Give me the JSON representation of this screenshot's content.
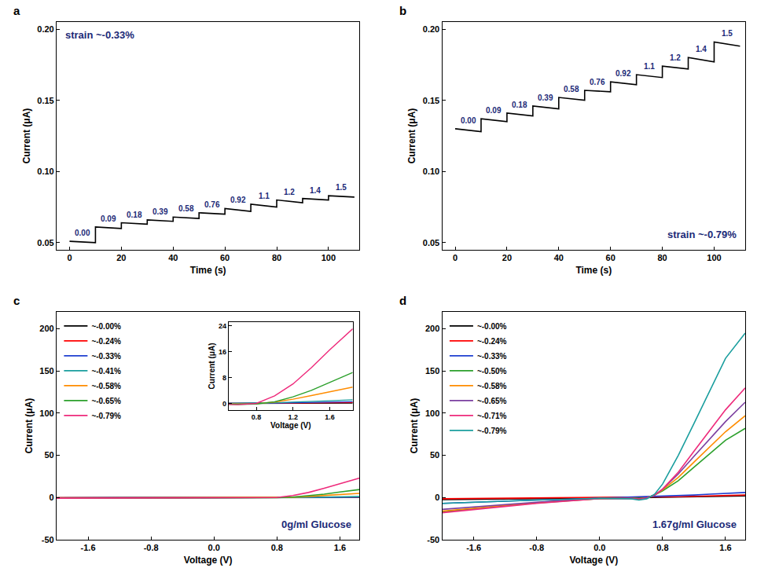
{
  "chart_data": [
    {
      "panel": "a",
      "type": "line",
      "color": "#000000",
      "x": [
        0,
        10,
        10,
        20,
        20,
        30,
        30,
        40,
        40,
        50,
        50,
        60,
        60,
        70,
        70,
        80,
        80,
        90,
        90,
        100,
        100,
        110
      ],
      "values": [
        0.051,
        0.05,
        0.061,
        0.06,
        0.064,
        0.063,
        0.066,
        0.065,
        0.068,
        0.067,
        0.071,
        0.07,
        0.074,
        0.072,
        0.077,
        0.075,
        0.08,
        0.078,
        0.081,
        0.08,
        0.083,
        0.082
      ],
      "segment_labels": [
        "0.00",
        "0.09",
        "0.18",
        "0.39",
        "0.58",
        "0.76",
        "0.92",
        "1.1",
        "1.2",
        "1.4",
        "1.5"
      ],
      "annotations": [
        "strain ~-0.33%"
      ],
      "xlabel": "Time (s)",
      "ylabel": "Current (μA)",
      "xlim": [
        -5,
        112
      ],
      "ylim": [
        0.045,
        0.205
      ],
      "xticks": [
        0,
        20,
        40,
        60,
        80,
        100
      ],
      "yticks": [
        0.05,
        {
          "value": 0.1,
          "label": "0.10"
        },
        0.15,
        {
          "value": 0.2,
          "label": "0.20"
        }
      ],
      "grid": false
    },
    {
      "panel": "b",
      "type": "line",
      "color": "#000000",
      "x": [
        0,
        10,
        10,
        20,
        20,
        30,
        30,
        40,
        40,
        50,
        50,
        60,
        60,
        70,
        70,
        80,
        80,
        90,
        90,
        100,
        100,
        110
      ],
      "values": [
        0.13,
        0.128,
        0.137,
        0.135,
        0.141,
        0.139,
        0.146,
        0.144,
        0.152,
        0.15,
        0.157,
        0.156,
        0.163,
        0.161,
        0.168,
        0.166,
        0.174,
        0.172,
        0.18,
        0.177,
        0.191,
        0.188
      ],
      "segment_labels": [
        "0.00",
        "0.09",
        "0.18",
        "0.39",
        "0.58",
        "0.76",
        "0.92",
        "1.1",
        "1.2",
        "1.4",
        "1.5"
      ],
      "annotations": [
        "strain ~-0.79%"
      ],
      "xlabel": "Time (s)",
      "ylabel": "Current (μA)",
      "xlim": [
        -5,
        112
      ],
      "ylim": [
        0.045,
        0.205
      ],
      "xticks": [
        0,
        20,
        40,
        60,
        80,
        100
      ],
      "yticks": [
        0.05,
        {
          "value": 0.1,
          "label": "0.10"
        },
        0.15,
        {
          "value": 0.2,
          "label": "0.20"
        }
      ],
      "grid": false
    },
    {
      "panel": "c",
      "type": "line",
      "legend": "upper left",
      "x": [
        -2.0,
        -1.6,
        -1.2,
        -0.8,
        -0.4,
        0,
        0.4,
        0.6,
        0.8,
        1.0,
        1.2,
        1.4,
        1.6,
        1.85
      ],
      "series": [
        {
          "name": "~-0.00%",
          "color": "#000000",
          "values": [
            -0.3,
            -0.3,
            -0.2,
            -0.2,
            -0.1,
            0,
            0,
            0,
            0,
            0,
            0,
            0.05,
            0.1,
            0.1
          ]
        },
        {
          "name": "~-0.24%",
          "color": "#ff0000",
          "values": [
            -0.3,
            -0.3,
            -0.2,
            -0.2,
            -0.1,
            0,
            0,
            0,
            0,
            0.05,
            0.1,
            0.15,
            0.2,
            0.3
          ]
        },
        {
          "name": "~-0.33%",
          "color": "#1f3fd0",
          "values": [
            -0.4,
            -0.4,
            -0.3,
            -0.3,
            -0.2,
            0,
            0,
            0,
            0.05,
            0.1,
            0.2,
            0.3,
            0.4,
            0.5
          ]
        },
        {
          "name": "~-0.41%",
          "color": "#1a9e9e",
          "values": [
            -0.5,
            -0.5,
            -0.4,
            -0.3,
            -0.2,
            0,
            0,
            0,
            0.1,
            0.2,
            0.35,
            0.55,
            0.8,
            1.1
          ]
        },
        {
          "name": "~-0.58%",
          "color": "#ff8c00",
          "values": [
            -0.6,
            -0.5,
            -0.5,
            -0.4,
            -0.3,
            -0.1,
            -0.1,
            -0.2,
            -0.1,
            0.4,
            1.3,
            2.4,
            3.6,
            5.0
          ]
        },
        {
          "name": "~-0.65%",
          "color": "#2ca02c",
          "values": [
            -0.7,
            -0.6,
            -0.5,
            -0.4,
            -0.3,
            -0.1,
            -0.2,
            -0.3,
            -0.2,
            0.5,
            2.0,
            4.0,
            6.5,
            9.5
          ]
        },
        {
          "name": "~-0.79%",
          "color": "#ee2a7b",
          "values": [
            -0.8,
            -0.7,
            -0.6,
            -0.5,
            -0.3,
            -0.1,
            -0.3,
            -0.4,
            0,
            2.3,
            6.0,
            11.0,
            16.5,
            23.0
          ]
        }
      ],
      "annotations": [
        "0g/ml Glucose"
      ],
      "xlabel": "Voltage (V)",
      "ylabel": "Current (μA)",
      "xlim": [
        -2.0,
        1.85
      ],
      "ylim": [
        -50,
        220
      ],
      "xticks": [
        -1.6,
        -0.8,
        {
          "value": 0,
          "label": "0.0"
        },
        0.8,
        1.6
      ],
      "yticks": [
        -50,
        0,
        50,
        100,
        150,
        200
      ],
      "grid": false,
      "inset": {
        "xlabel": "Voltage (V)",
        "ylabel": "Current (μA)",
        "xlim": [
          0.5,
          1.85
        ],
        "ylim": [
          -2,
          25
        ],
        "xticks": [
          0.8,
          1.2,
          1.6
        ],
        "yticks": [
          0,
          8,
          16,
          24
        ]
      }
    },
    {
      "panel": "d",
      "type": "line",
      "legend": "upper left",
      "x": [
        -2.0,
        -1.6,
        -1.2,
        -0.8,
        -0.4,
        0,
        0.4,
        0.5,
        0.6,
        0.7,
        0.8,
        1.0,
        1.2,
        1.4,
        1.6,
        1.85
      ],
      "series": [
        {
          "name": "~-0.00%",
          "color": "#000000",
          "values": [
            -2.5,
            -2,
            -1.6,
            -1.2,
            -0.8,
            -0.4,
            0,
            0.1,
            0.1,
            0.2,
            0.3,
            0.6,
            0.9,
            1.2,
            1.6,
            2.0
          ]
        },
        {
          "name": "~-0.24%",
          "color": "#ff0000",
          "values": [
            -1.5,
            -1.2,
            -1,
            -0.7,
            -0.5,
            -0.2,
            0.1,
            0.2,
            0.3,
            0.4,
            0.6,
            1,
            1.5,
            2,
            2.5,
            3
          ]
        },
        {
          "name": "~-0.33%",
          "color": "#1f3fd0",
          "values": [
            -7,
            -5.5,
            -4,
            -3,
            -2,
            -0.8,
            0.3,
            0.5,
            0.7,
            0.9,
            1.2,
            2,
            3,
            4,
            5,
            6
          ]
        },
        {
          "name": "~-0.50%",
          "color": "#2ca02c",
          "values": [
            -17,
            -13,
            -9.5,
            -6.5,
            -3.5,
            -1.2,
            -0.5,
            -1,
            -0.5,
            3,
            8,
            20,
            36,
            52,
            68,
            82
          ]
        },
        {
          "name": "~-0.58%",
          "color": "#ff8c00",
          "values": [
            -16,
            -12.5,
            -9,
            -6,
            -3.5,
            -1.2,
            -0.8,
            -1.5,
            -0.5,
            3,
            9,
            24,
            42,
            60,
            78,
            97
          ]
        },
        {
          "name": "~-0.65%",
          "color": "#7b3fa0",
          "values": [
            -14,
            -11,
            -8,
            -5.5,
            -3,
            -1,
            -0.8,
            -1.8,
            -0.5,
            3,
            10,
            28,
            49,
            70,
            90,
            113
          ]
        },
        {
          "name": "~-0.71%",
          "color": "#ee2a7b",
          "values": [
            -18,
            -14,
            -10.5,
            -7,
            -4,
            -1.3,
            -1,
            -2,
            -0.5,
            3,
            10,
            30,
            55,
            80,
            104,
            130
          ]
        },
        {
          "name": "~-0.79%",
          "color": "#1a9e9e",
          "values": [
            -7,
            -5.5,
            -4,
            -3,
            -2,
            -1,
            -1.5,
            -3,
            -1.5,
            4,
            16,
            50,
            88,
            127,
            165,
            195
          ]
        }
      ],
      "annotations": [
        "1.67g/ml Glucose"
      ],
      "xlabel": "Voltage (V)",
      "ylabel": "Current (μA)",
      "xlim": [
        -2.0,
        1.85
      ],
      "ylim": [
        -50,
        220
      ],
      "xticks": [
        -1.6,
        -0.8,
        {
          "value": 0,
          "label": "0.0"
        },
        0.8,
        1.6
      ],
      "yticks": [
        -50,
        0,
        50,
        100,
        150,
        200
      ],
      "grid": false
    }
  ]
}
